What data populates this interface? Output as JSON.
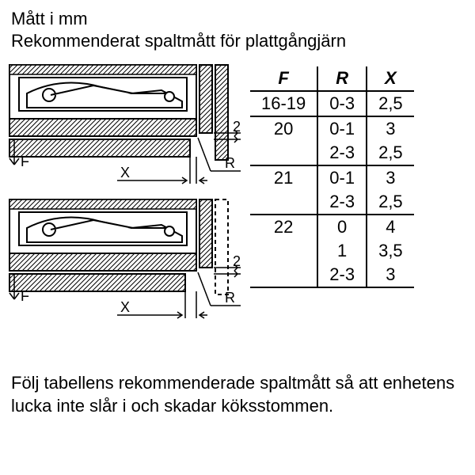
{
  "title": {
    "line1": "Mått i mm",
    "line2": "Rekommenderat spaltmått för plattgångjärn"
  },
  "table": {
    "headers": [
      "F",
      "R",
      "X"
    ],
    "rows": [
      {
        "F": "16-19",
        "R": "0-3",
        "X": "2,5",
        "border": true
      },
      {
        "F": "20",
        "R": "0-1",
        "X": "3",
        "border": false
      },
      {
        "F": "",
        "R": "2-3",
        "X": "2,5",
        "border": true
      },
      {
        "F": "21",
        "R": "0-1",
        "X": "3",
        "border": false
      },
      {
        "F": "",
        "R": "2-3",
        "X": "2,5",
        "border": true
      },
      {
        "F": "22",
        "R": "0",
        "X": "4",
        "border": false
      },
      {
        "F": "",
        "R": "1",
        "X": "3,5",
        "border": false
      },
      {
        "F": "",
        "R": "2-3",
        "X": "3",
        "border": true
      }
    ]
  },
  "diagram": {
    "gap_label": "2",
    "labels": {
      "F": "F",
      "X": "X",
      "R": "R"
    },
    "colors": {
      "stroke": "#000000",
      "fill_light": "#ffffff",
      "fill_hatch": "#b0b0b0"
    }
  },
  "footer": "Följ tabellens rekommenderade spaltmått så att enhetens lucka inte slår i och skadar köksstommen."
}
